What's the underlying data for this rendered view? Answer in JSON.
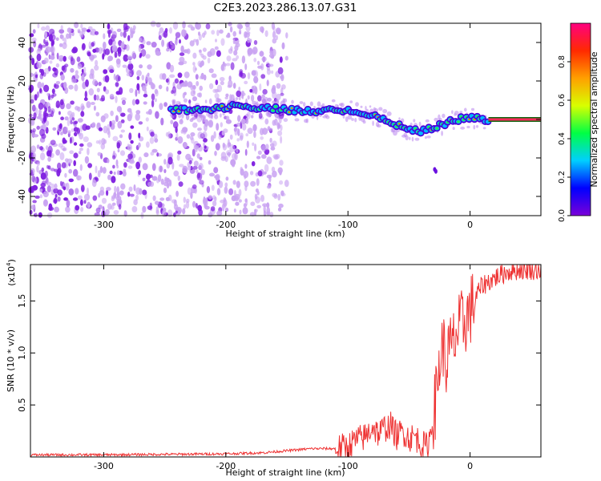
{
  "figure": {
    "title": "C2E3.2023.286.13.07.G31"
  },
  "chart_data": [
    {
      "type": "heatmap",
      "xlabel": "Height of straight line (km)",
      "ylabel": "Frequency (Hz)",
      "xlim": [
        -360,
        58
      ],
      "ylim": [
        -50,
        50
      ],
      "xticks": [
        "-300",
        "-200",
        "-100",
        "0"
      ],
      "yticks": [
        "40",
        "20",
        "0",
        "-20",
        "-40"
      ],
      "colorbar": {
        "label": "Normalized spectral amplitude",
        "range": [
          0,
          1
        ],
        "ticks": [
          "0.0",
          "0.2",
          "0.4",
          "0.6",
          "0.8"
        ],
        "colormap": [
          "#7b00d8",
          "#0000ff",
          "#00cfff",
          "#00ff44",
          "#d8ff00",
          "#ffa000",
          "#ff2a00",
          "#ff0080"
        ]
      },
      "signal_track": {
        "x": [
          -245,
          -220,
          -190,
          -170,
          -150,
          -130,
          -110,
          -90,
          -75,
          -60,
          -50,
          -40,
          -30,
          -20,
          -10,
          0,
          10,
          20,
          58
        ],
        "y": [
          5,
          5,
          7,
          6,
          5,
          4,
          5,
          4,
          1,
          -3,
          -5,
          -6,
          -4,
          -2,
          0,
          1,
          0,
          0,
          0
        ]
      },
      "noise_region": {
        "from": -360,
        "to": -160
      }
    },
    {
      "type": "line",
      "xlabel": "Height of straight line (km)",
      "ylabel": "SNR (10 * v/v)",
      "yunit_label": "(x10",
      "yunit_exp": "4",
      "xlim": [
        -360,
        58
      ],
      "ylim": [
        0,
        1.85
      ],
      "xticks": [
        "-300",
        "-200",
        "-100",
        "0"
      ],
      "yticks": [
        "0.5",
        "1.0",
        "1.5"
      ],
      "series": [
        {
          "color": "#ee3333",
          "x": [
            -360,
            -300,
            -250,
            -200,
            -170,
            -150,
            -130,
            -110,
            -100,
            -95,
            -85,
            -80,
            -75,
            -70,
            -65,
            -60,
            -55,
            -50,
            -45,
            -40,
            -35,
            -32,
            -28,
            -25,
            -22,
            -20,
            -18,
            -15,
            -12,
            -8,
            -5,
            0,
            5,
            10,
            20,
            30,
            40,
            50,
            58
          ],
          "y": [
            0.02,
            0.02,
            0.025,
            0.03,
            0.04,
            0.06,
            0.08,
            0.08,
            0.1,
            0.15,
            0.2,
            0.3,
            0.22,
            0.28,
            0.3,
            0.2,
            0.25,
            0.18,
            0.2,
            0.12,
            0.1,
            0.25,
            0.55,
            0.9,
            1.1,
            0.85,
            1.0,
            1.05,
            1.15,
            1.25,
            1.3,
            1.4,
            1.55,
            1.65,
            1.72,
            1.78,
            1.8,
            1.8,
            1.8
          ]
        }
      ]
    }
  ]
}
